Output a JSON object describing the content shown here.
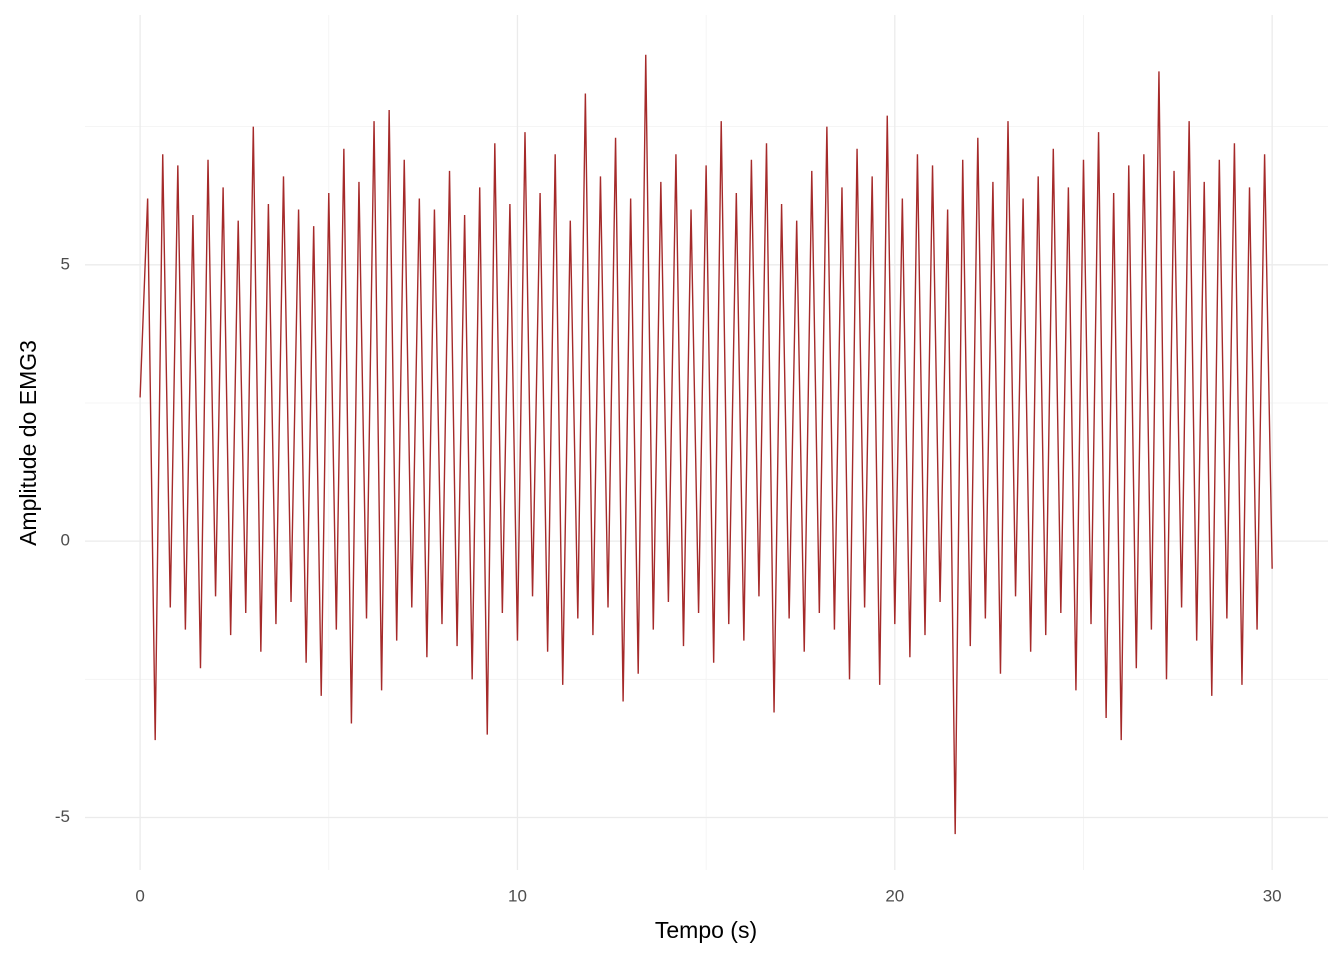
{
  "chart_data": {
    "type": "line",
    "x_label": "Tempo (s)",
    "y_label": "Amplitude do EMG3",
    "color": "#a52a2a",
    "grid": true,
    "xlim": [
      -1.46,
      31.48
    ],
    "ylim": [
      -5.95,
      9.52
    ],
    "xticks": [
      0,
      10,
      20,
      30
    ],
    "yticks": [
      -5,
      0,
      5
    ],
    "xminor": [
      5,
      15,
      25
    ],
    "yminor": [
      -2.5,
      2.5,
      7.5
    ],
    "x": [
      0,
      0.2,
      0.4,
      0.6,
      0.8,
      1,
      1.2,
      1.4,
      1.6,
      1.8,
      2,
      2.2,
      2.4,
      2.6,
      2.8,
      3,
      3.2,
      3.4,
      3.6,
      3.8,
      4,
      4.2,
      4.4,
      4.6,
      4.8,
      5,
      5.2,
      5.4,
      5.6,
      5.8,
      6,
      6.2,
      6.4,
      6.6,
      6.8,
      7,
      7.2,
      7.4,
      7.6,
      7.8,
      8,
      8.2,
      8.4,
      8.6,
      8.8,
      9,
      9.2,
      9.4,
      9.6,
      9.8,
      10,
      10.2,
      10.4,
      10.6,
      10.8,
      11,
      11.2,
      11.4,
      11.6,
      11.8,
      12,
      12.2,
      12.4,
      12.6,
      12.8,
      13,
      13.2,
      13.4,
      13.6,
      13.8,
      14,
      14.2,
      14.4,
      14.6,
      14.8,
      15,
      15.2,
      15.4,
      15.6,
      15.8,
      16,
      16.2,
      16.4,
      16.6,
      16.8,
      17,
      17.2,
      17.4,
      17.6,
      17.8,
      18,
      18.2,
      18.4,
      18.6,
      18.8,
      19,
      19.2,
      19.4,
      19.6,
      19.8,
      20,
      20.2,
      20.4,
      20.6,
      20.8,
      21,
      21.2,
      21.4,
      21.6,
      21.8,
      22,
      22.2,
      22.4,
      22.6,
      22.8,
      23,
      23.2,
      23.4,
      23.6,
      23.8,
      24,
      24.2,
      24.4,
      24.6,
      24.8,
      25,
      25.2,
      25.4,
      25.6,
      25.8,
      26,
      26.2,
      26.4,
      26.6,
      26.8,
      27,
      27.2,
      27.4,
      27.6,
      27.8,
      28,
      28.2,
      28.4,
      28.6,
      28.8,
      29,
      29.2,
      29.4,
      29.6,
      29.8,
      30
    ],
    "values": [
      2.6,
      6.2,
      -3.6,
      7.0,
      -1.2,
      6.8,
      -1.6,
      5.9,
      -2.3,
      6.9,
      -1.0,
      6.4,
      -1.7,
      5.8,
      -1.3,
      7.5,
      -2.0,
      6.1,
      -1.5,
      6.6,
      -1.1,
      6.0,
      -2.2,
      5.7,
      -2.8,
      6.3,
      -1.6,
      7.1,
      -3.3,
      6.5,
      -1.4,
      7.6,
      -2.7,
      7.8,
      -1.8,
      6.9,
      -1.2,
      6.2,
      -2.1,
      6.0,
      -1.5,
      6.7,
      -1.9,
      5.9,
      -2.5,
      6.4,
      -3.5,
      7.2,
      -1.3,
      6.1,
      -1.8,
      7.4,
      -1.0,
      6.3,
      -2.0,
      7.0,
      -2.6,
      5.8,
      -1.4,
      8.1,
      -1.7,
      6.6,
      -1.2,
      7.3,
      -2.9,
      6.2,
      -2.4,
      8.8,
      -1.6,
      6.5,
      -1.1,
      7.0,
      -1.9,
      6.0,
      -1.3,
      6.8,
      -2.2,
      7.6,
      -1.5,
      6.3,
      -1.8,
      6.9,
      -1.0,
      7.2,
      -3.1,
      6.1,
      -1.4,
      5.8,
      -2.0,
      6.7,
      -1.3,
      7.5,
      -1.6,
      6.4,
      -2.5,
      7.1,
      -1.2,
      6.6,
      -2.6,
      7.7,
      -1.5,
      6.2,
      -2.1,
      7.0,
      -1.7,
      6.8,
      -1.1,
      6.0,
      -5.3,
      6.9,
      -1.9,
      7.3,
      -1.4,
      6.5,
      -2.4,
      7.6,
      -1.0,
      6.2,
      -2.0,
      6.6,
      -1.7,
      7.1,
      -1.3,
      6.4,
      -2.7,
      6.9,
      -1.5,
      7.4,
      -3.2,
      6.3,
      -3.6,
      6.8,
      -2.3,
      7.0,
      -1.6,
      8.5,
      -2.5,
      6.7,
      -1.2,
      7.6,
      -1.8,
      6.5,
      -2.8,
      6.9,
      -1.4,
      7.2,
      -2.6,
      6.4,
      -1.6,
      7.0,
      -0.5
    ]
  }
}
